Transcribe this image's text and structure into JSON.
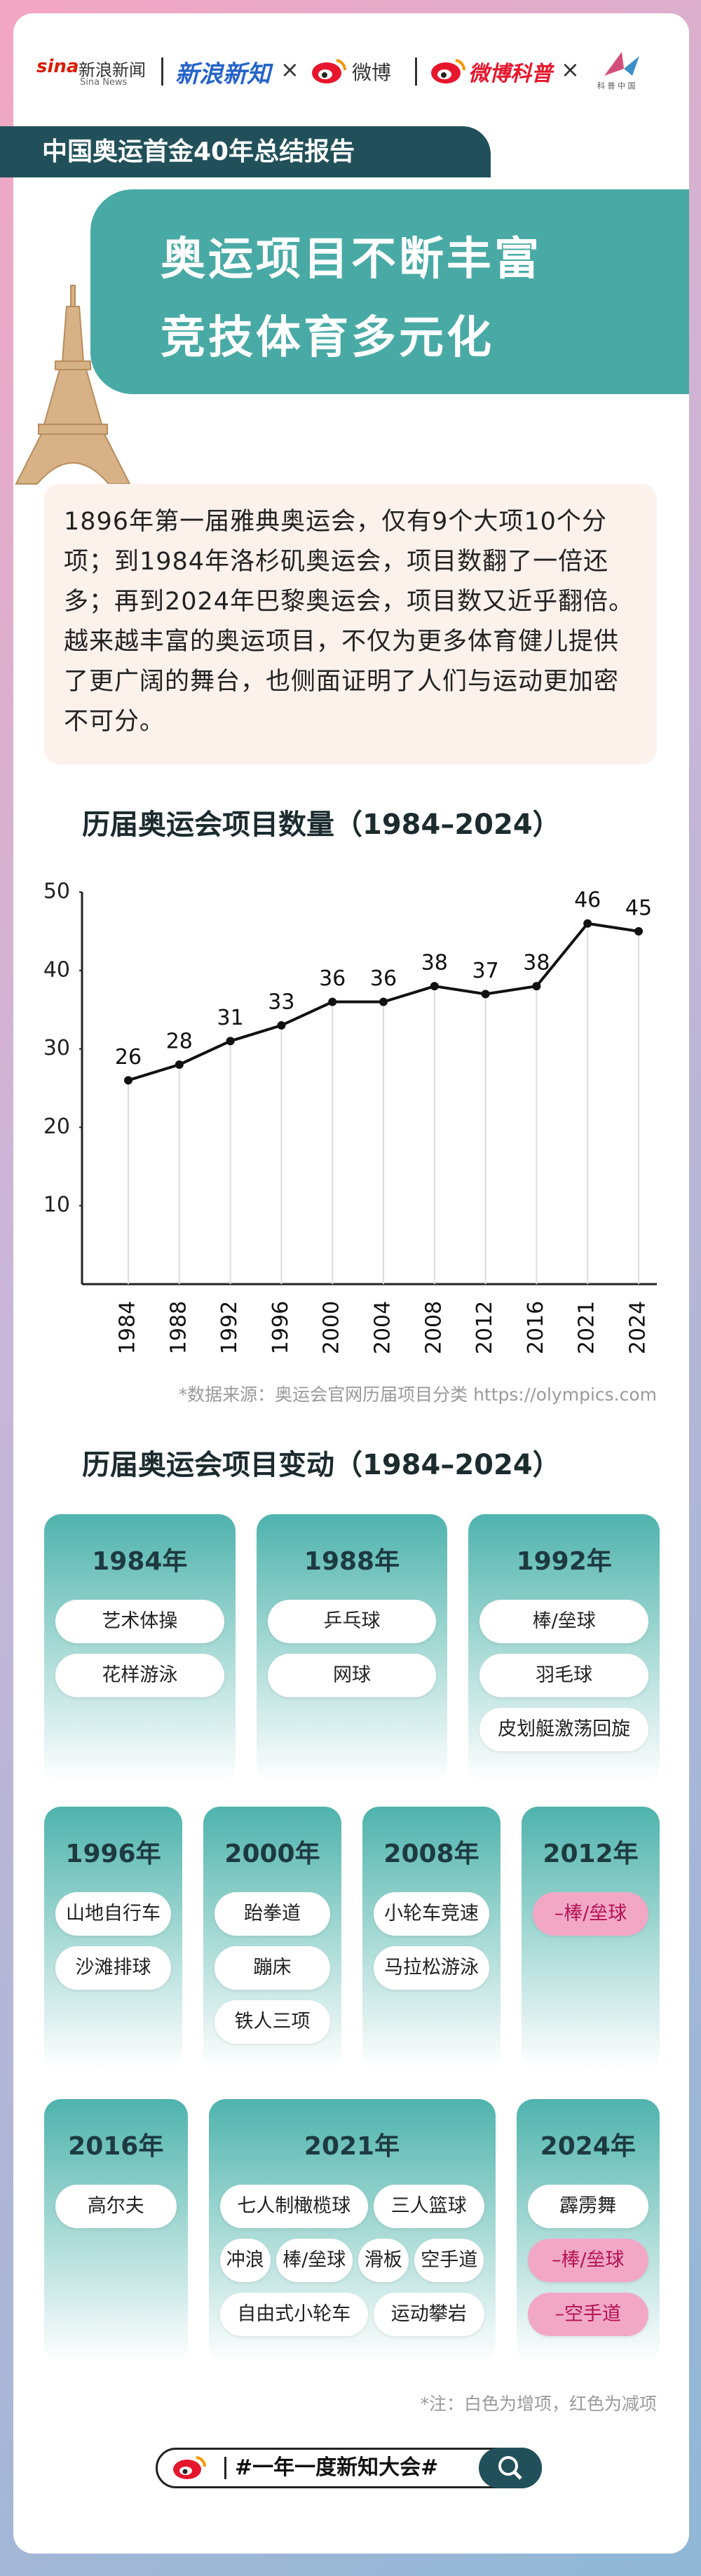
{
  "header": {
    "sina_logo": "sina",
    "sina_news": "新浪新闻",
    "sina_news_en": "Sina News",
    "xinzhi": "新浪新知",
    "times": "×",
    "weibo": "微博",
    "weibo_kepu": "微博科普",
    "kepu_china": "科 普 中 国"
  },
  "report_label": "中国奥运首金40年总结报告",
  "title_lines": [
    "奥运项目不断丰富",
    "竞技体育多元化"
  ],
  "intro": "1896年第一届雅典奥运会，仅有9个大项10个分项；到1984年洛杉矶奥运会，项目数翻了一倍还多；再到2024年巴黎奥运会，项目数又近乎翻倍。越来越丰富的奥运项目，不仅为更多体育健儿提供了更广阔的舞台，也侧面证明了人们与运动更加密不可分。",
  "chart_data": {
    "type": "line",
    "title": "历届奥运会项目数量（1984–2024）",
    "categories": [
      "1984",
      "1988",
      "1992",
      "1996",
      "2000",
      "2004",
      "2008",
      "2012",
      "2016",
      "2021",
      "2024"
    ],
    "values": [
      26,
      28,
      31,
      33,
      36,
      36,
      38,
      37,
      38,
      46,
      45
    ],
    "color": "#111111",
    "ylim": [
      0,
      50
    ],
    "yticks": [
      10,
      20,
      30,
      40,
      50
    ],
    "source": "*数据来源：奥运会官网历届项目分类 https://olympics.com"
  },
  "changes": {
    "title": "历届奥运会项目变动（1984–2024）",
    "rows": [
      [
        {
          "year": "1984年",
          "items": [
            [
              "艺术体操"
            ],
            [
              "花样游泳"
            ]
          ]
        },
        {
          "year": "1988年",
          "items": [
            [
              "乒乓球"
            ],
            [
              "网球"
            ]
          ]
        },
        {
          "year": "1992年",
          "items": [
            [
              "棒/垒球"
            ],
            [
              "羽毛球"
            ],
            [
              "皮划艇激荡回旋"
            ]
          ]
        }
      ],
      [
        {
          "year": "1996年",
          "items": [
            [
              "山地自行车"
            ],
            [
              "沙滩排球"
            ]
          ]
        },
        {
          "year": "2000年",
          "items": [
            [
              "跆拳道"
            ],
            [
              "蹦床"
            ],
            [
              "铁人三项"
            ]
          ]
        },
        {
          "year": "2008年",
          "items": [
            [
              "小轮车竞速"
            ],
            [
              "马拉松游泳"
            ]
          ]
        },
        {
          "year": "2012年",
          "items": [
            [
              {
                "text": "–棒/垒球",
                "removed": true
              }
            ]
          ]
        }
      ],
      [
        {
          "year": "2016年",
          "items": [
            [
              "高尔夫"
            ]
          ]
        },
        {
          "year": "2021年",
          "items": [
            [
              "七人制橄榄球",
              "三人篮球"
            ],
            [
              "冲浪",
              "棒/垒球",
              "滑板",
              "空手道"
            ],
            [
              "自由式小轮车",
              "运动攀岩"
            ]
          ]
        },
        {
          "year": "2024年",
          "items": [
            [
              "霹雳舞"
            ],
            [
              {
                "text": "–棒/垒球",
                "removed": true
              }
            ],
            [
              {
                "text": "–空手道",
                "removed": true
              }
            ]
          ]
        }
      ]
    ]
  },
  "note": "*注：白色为增项，红色为减项",
  "footer": {
    "hashtag": "#一年一度新知大会#"
  }
}
